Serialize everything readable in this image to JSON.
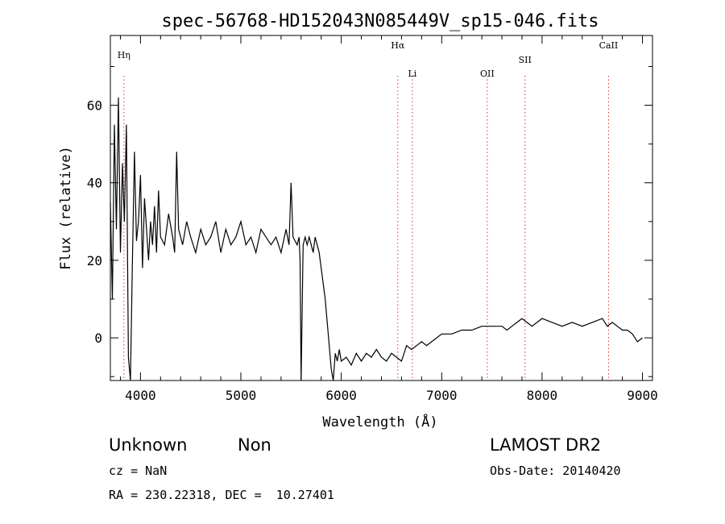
{
  "chart_data": {
    "type": "line",
    "title": "spec-56768-HD152043N085449V_sp15-046.fits",
    "xlabel": "Wavelength (Å)",
    "ylabel": "Flux (relative)",
    "xlim": [
      3700,
      9100
    ],
    "ylim": [
      -11,
      78
    ],
    "xticks": [
      4000,
      5000,
      6000,
      7000,
      8000,
      9000
    ],
    "yticks": [
      0,
      20,
      40,
      60
    ],
    "grid": false,
    "series": [
      {
        "x": [
          3700,
          3720,
          3740,
          3760,
          3780,
          3800,
          3820,
          3840,
          3860,
          3880,
          3900,
          3920,
          3940,
          3960,
          3980,
          4000,
          4020,
          4040,
          4060,
          4080,
          4100,
          4120,
          4140,
          4160,
          4180,
          4200,
          4240,
          4280,
          4320,
          4340,
          4360,
          4380,
          4420,
          4460,
          4500,
          4550,
          4600,
          4650,
          4700,
          4750,
          4800,
          4850,
          4900,
          4950,
          5000,
          5050,
          5100,
          5150,
          5200,
          5250,
          5300,
          5350,
          5400,
          5450,
          5480,
          5500,
          5520,
          5560,
          5580,
          5590,
          5600,
          5620,
          5640,
          5660,
          5680,
          5700,
          5720,
          5740,
          5760,
          5780,
          5800,
          5820,
          5840,
          5860,
          5880,
          5900,
          5920,
          5940,
          5960,
          5980,
          6000,
          6050,
          6100,
          6150,
          6200,
          6250,
          6300,
          6350,
          6400,
          6450,
          6500,
          6550,
          6600,
          6650,
          6700,
          6750,
          6800,
          6850,
          6900,
          6950,
          7000,
          7100,
          7200,
          7300,
          7400,
          7500,
          7600,
          7650,
          7700,
          7750,
          7800,
          7850,
          7900,
          7950,
          8000,
          8100,
          8200,
          8300,
          8400,
          8500,
          8600,
          8650,
          8700,
          8750,
          8800,
          8850,
          8900,
          8950,
          9000
        ],
        "y": [
          35,
          10,
          55,
          28,
          62,
          22,
          45,
          30,
          55,
          -5,
          -11,
          20,
          48,
          25,
          30,
          42,
          18,
          36,
          28,
          20,
          30,
          24,
          34,
          22,
          38,
          26,
          24,
          32,
          26,
          22,
          48,
          28,
          24,
          30,
          26,
          22,
          28,
          24,
          26,
          30,
          22,
          28,
          24,
          26,
          30,
          24,
          26,
          22,
          28,
          26,
          24,
          26,
          22,
          28,
          24,
          40,
          26,
          24,
          26,
          20,
          -11,
          24,
          26,
          24,
          26,
          24,
          22,
          26,
          24,
          22,
          18,
          14,
          10,
          4,
          -2,
          -8,
          -11,
          -4,
          -6,
          -3,
          -6,
          -5,
          -7,
          -4,
          -6,
          -4,
          -5,
          -3,
          -5,
          -6,
          -4,
          -5,
          -6,
          -2,
          -3,
          -2,
          -1,
          -2,
          -1,
          0,
          1,
          1,
          2,
          2,
          3,
          3,
          3,
          2,
          3,
          4,
          5,
          4,
          3,
          4,
          5,
          4,
          3,
          4,
          3,
          4,
          5,
          3,
          4,
          3,
          2,
          2,
          1,
          -1,
          0
        ]
      }
    ],
    "line_markers": [
      {
        "label": "Hη",
        "x": 3835
      },
      {
        "label": "Hα",
        "x": 6563
      },
      {
        "label": "Li",
        "x": 6708
      },
      {
        "label": "OII",
        "x": 7454
      },
      {
        "label": "SII",
        "x": 7830
      },
      {
        "label": "CaII",
        "x": 8662
      }
    ]
  },
  "info": {
    "class": "Unknown",
    "subclass": "Non",
    "survey": "LAMOST DR2",
    "cz": "cz = NaN",
    "obs_date": "Obs-Date: 20140420",
    "coords": "RA = 230.22318, DEC =  10.27401"
  }
}
